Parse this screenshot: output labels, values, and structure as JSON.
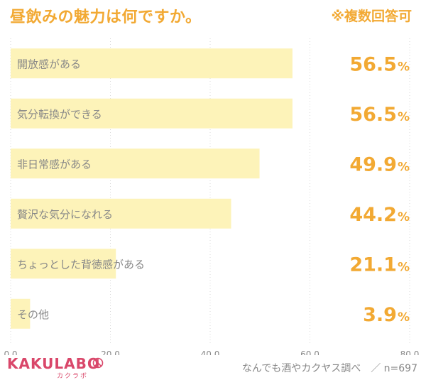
{
  "header": {
    "title": "昼飲みの魅力は何ですか。",
    "note": "※複数回答可"
  },
  "chart_data": {
    "type": "bar",
    "orientation": "horizontal",
    "title": "昼飲みの魅力は何ですか。",
    "categories": [
      "開放感がある",
      "気分転換ができる",
      "非日常感がある",
      "贅沢な気分になれる",
      "ちょっとした背徳感がある",
      "その他"
    ],
    "values": [
      56.5,
      56.5,
      49.9,
      44.2,
      21.1,
      3.9
    ],
    "value_labels": [
      "56.5",
      "56.5",
      "49.9",
      "44.2",
      "21.1",
      "3.9"
    ],
    "value_unit": "%",
    "xlim": [
      0,
      80
    ],
    "xticks": [
      "0.0",
      "20.0",
      "40.0",
      "60.0",
      "80.0"
    ],
    "xtick_values": [
      0,
      20,
      40,
      60,
      80
    ],
    "grid": true,
    "bar_color": "#fdf3b9",
    "accent_color": "#f2a933"
  },
  "footer": {
    "logo": "KAKULABO",
    "logo_sub": "カクラボ",
    "source": "なんでも酒やカクヤス調べ　／ n=697"
  }
}
